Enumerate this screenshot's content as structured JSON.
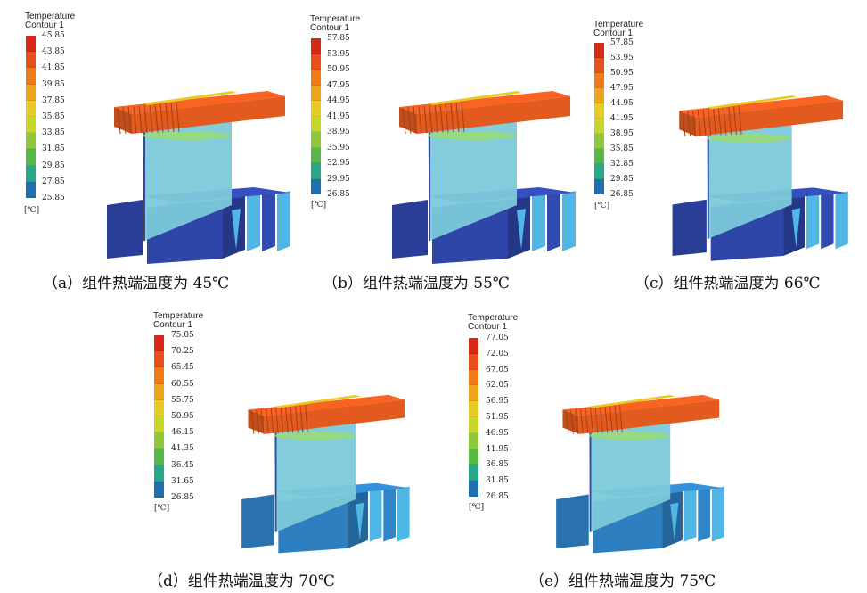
{
  "panels": [
    {
      "id": "a",
      "legend_title_line1": "Temperature",
      "legend_title_line2": "Contour 1",
      "ticks": [
        "45.85",
        "43.85",
        "41.85",
        "39.85",
        "37.85",
        "35.85",
        "33.85",
        "31.85",
        "29.85",
        "27.85",
        "25.85"
      ],
      "unit": "[℃]",
      "caption": "（a）组件热端温度为 45℃",
      "colors": [
        "#d8281a",
        "#e8501a",
        "#f07a18",
        "#f0a31c",
        "#e6cc22",
        "#c6d62a",
        "#8fc83a",
        "#56b846",
        "#28a88a",
        "#1f6fb0",
        "#27338f"
      ],
      "box_color": "#2e46a8",
      "sink_color": "#e35a1e"
    },
    {
      "id": "b",
      "legend_title_line1": "Temperature",
      "legend_title_line2": "Contour 1",
      "ticks": [
        "57.85",
        "53.95",
        "50.95",
        "47.95",
        "44.95",
        "41.95",
        "38.95",
        "35.95",
        "32.95",
        "29.95",
        "26.85"
      ],
      "unit": "[℃]",
      "caption": "（b）组件热端温度为 55℃",
      "colors": [
        "#d8281a",
        "#e8501a",
        "#f07a18",
        "#f0a31c",
        "#e6cc22",
        "#c6d62a",
        "#8fc83a",
        "#56b846",
        "#28a88a",
        "#1f6fb0",
        "#27338f"
      ],
      "box_color": "#2e46a8",
      "sink_color": "#e35a1e"
    },
    {
      "id": "c",
      "legend_title_line1": "Temperature",
      "legend_title_line2": "Contour 1",
      "ticks": [
        "57.85",
        "53.95",
        "50.95",
        "47.95",
        "44.95",
        "41.95",
        "38.95",
        "35.85",
        "32.85",
        "29.85",
        "26.85"
      ],
      "unit": "[℃]",
      "caption": "（c）组件热端温度为 66℃",
      "colors": [
        "#d8281a",
        "#e8501a",
        "#f07a18",
        "#f0a31c",
        "#e6cc22",
        "#c6d62a",
        "#8fc83a",
        "#56b846",
        "#28a88a",
        "#1f6fb0",
        "#27338f"
      ],
      "box_color": "#2e46a8",
      "sink_color": "#e35a1e"
    },
    {
      "id": "d",
      "legend_title_line1": "Temperature",
      "legend_title_line2": "Contour 1",
      "ticks": [
        "75.05",
        "70.25",
        "65.45",
        "60.55",
        "55.75",
        "50.95",
        "46.15",
        "41.35",
        "36.45",
        "31.65",
        "26.85"
      ],
      "unit": "[℃]",
      "caption": "（d）组件热端温度为 70℃",
      "colors": [
        "#d8281a",
        "#e8501a",
        "#f07a18",
        "#f0a31c",
        "#e6cc22",
        "#c6d62a",
        "#8fc83a",
        "#56b846",
        "#28a88a",
        "#1f6fb0",
        "#27338f"
      ],
      "box_color": "#2d7fc0",
      "sink_color": "#e35a1e"
    },
    {
      "id": "e",
      "legend_title_line1": "Temperature",
      "legend_title_line2": "Contour 1",
      "ticks": [
        "77.05",
        "72.05",
        "67.05",
        "62.05",
        "56.95",
        "51.95",
        "46.95",
        "41.95",
        "36.85",
        "31.85",
        "26.85"
      ],
      "unit": "[℃]",
      "caption": "（e）组件热端温度为 75℃",
      "colors": [
        "#d8281a",
        "#e8501a",
        "#f07a18",
        "#f0a31c",
        "#e6cc22",
        "#c6d62a",
        "#8fc83a",
        "#56b846",
        "#28a88a",
        "#1f6fb0",
        "#27338f"
      ],
      "box_color": "#2d7fc0",
      "sink_color": "#e35a1e"
    }
  ]
}
